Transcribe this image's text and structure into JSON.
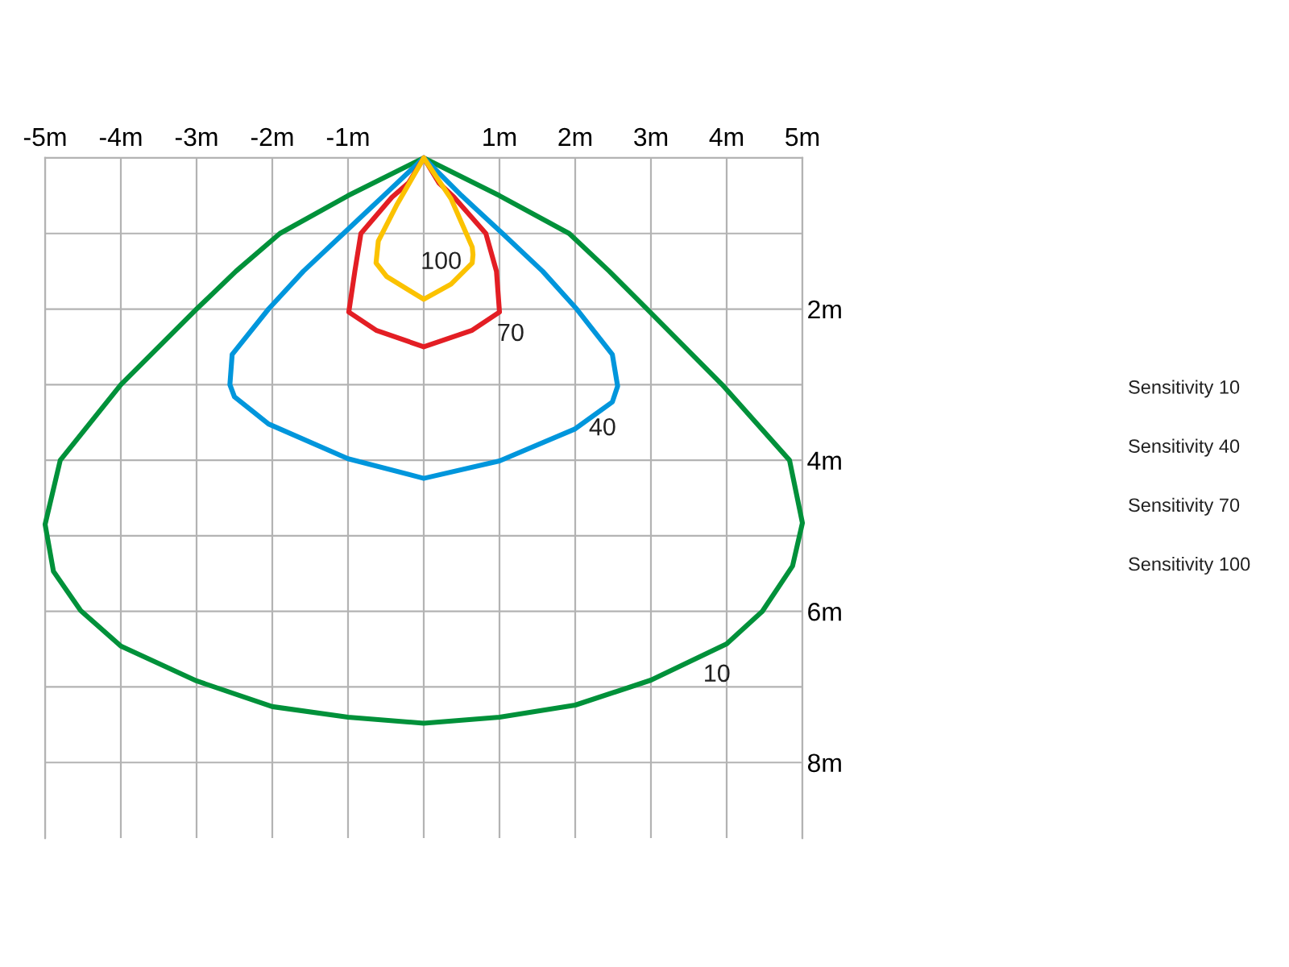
{
  "chart_data": {
    "type": "line",
    "series": [
      {
        "color": "#00913a",
        "x": [
          0,
          -1.0,
          -1.9,
          -2.48,
          -3.0,
          -4.0,
          -4.8,
          -5.0,
          -4.89,
          -4.53,
          -4.0,
          -3.0,
          -2.0,
          -1.0,
          0,
          1.0,
          2.0,
          3.0,
          4.0,
          4.47,
          4.87,
          5.0,
          4.83,
          3.94,
          2.95,
          2.45,
          1.92,
          1.0,
          0
        ],
        "values": [
          0,
          0.5,
          1.0,
          1.5,
          2.0,
          3.0,
          4.0,
          4.85,
          5.47,
          5.99,
          6.46,
          6.92,
          7.26,
          7.4,
          7.48,
          7.4,
          7.24,
          6.91,
          6.43,
          6.0,
          5.4,
          4.83,
          4.0,
          3.0,
          2.0,
          1.5,
          1.0,
          0.5,
          0
        ]
      },
      {
        "color": "#0096dc",
        "x": [
          0,
          -0.53,
          -1.06,
          -1.59,
          -2.05,
          -2.53,
          -2.56,
          -2.5,
          -2.05,
          -1.0,
          0,
          1.0,
          1.99,
          2.49,
          2.56,
          2.49,
          2.02,
          1.57,
          1.04,
          0.5,
          0
        ],
        "values": [
          0,
          0.5,
          1.0,
          1.5,
          2.0,
          2.6,
          3.0,
          3.16,
          3.52,
          3.98,
          4.24,
          4.01,
          3.59,
          3.23,
          3.02,
          2.6,
          2.0,
          1.5,
          1.0,
          0.5,
          0
        ]
      },
      {
        "color": "#e31e24",
        "x": [
          0,
          -0.2,
          -0.42,
          -0.83,
          -0.91,
          -0.99,
          -0.63,
          0,
          0.64,
          1.0,
          0.96,
          0.82,
          0.4,
          0.2,
          0
        ],
        "values": [
          0,
          0.33,
          0.52,
          1.0,
          1.5,
          2.04,
          2.28,
          2.5,
          2.28,
          2.04,
          1.5,
          1.0,
          0.52,
          0.33,
          0
        ]
      },
      {
        "color": "#fbc200",
        "x": [
          0,
          -0.35,
          -0.6,
          -0.63,
          -0.49,
          0,
          0.36,
          0.64,
          0.65,
          0.64,
          0.36,
          0
        ],
        "values": [
          0,
          0.61,
          1.1,
          1.39,
          1.57,
          1.87,
          1.67,
          1.39,
          1.28,
          1.18,
          0.54,
          0
        ]
      }
    ],
    "xlim": [
      -5,
      5
    ],
    "xticks": [
      {
        "value": -5,
        "label": "-5m"
      },
      {
        "value": -4,
        "label": "-4m"
      },
      {
        "value": -3,
        "label": "-3m"
      },
      {
        "value": -2,
        "label": "-2m"
      },
      {
        "value": -1,
        "label": "-1m"
      },
      {
        "value": 0,
        "label": null
      },
      {
        "value": 1,
        "label": "1m"
      },
      {
        "value": 2,
        "label": "2m"
      },
      {
        "value": 3,
        "label": "3m"
      },
      {
        "value": 4,
        "label": "4m"
      },
      {
        "value": 5,
        "label": "5m"
      }
    ],
    "ylim": [
      9,
      0
    ],
    "yticks": [
      {
        "value": 0,
        "label": null
      },
      {
        "value": 1,
        "label": null
      },
      {
        "value": 2,
        "label": "2m"
      },
      {
        "value": 3,
        "label": null
      },
      {
        "value": 4,
        "label": "4m"
      },
      {
        "value": 5,
        "label": null
      },
      {
        "value": 6,
        "label": "6m"
      },
      {
        "value": 7,
        "label": null
      },
      {
        "value": 8,
        "label": "8m"
      }
    ],
    "grid": true,
    "annotations": [
      {
        "text": "100",
        "x": 0.23,
        "y": 1.74
      },
      {
        "text": "70",
        "x": 1.0,
        "y": 2.04
      },
      {
        "text": "40",
        "x": 2.36,
        "y": 3.32
      },
      {
        "text": "10",
        "x": 3.87,
        "y": 6.49
      },
      "Sensitivity 10",
      "Sensitivity 40",
      "Sensitivity 70",
      "Sensitivity 100"
    ]
  }
}
